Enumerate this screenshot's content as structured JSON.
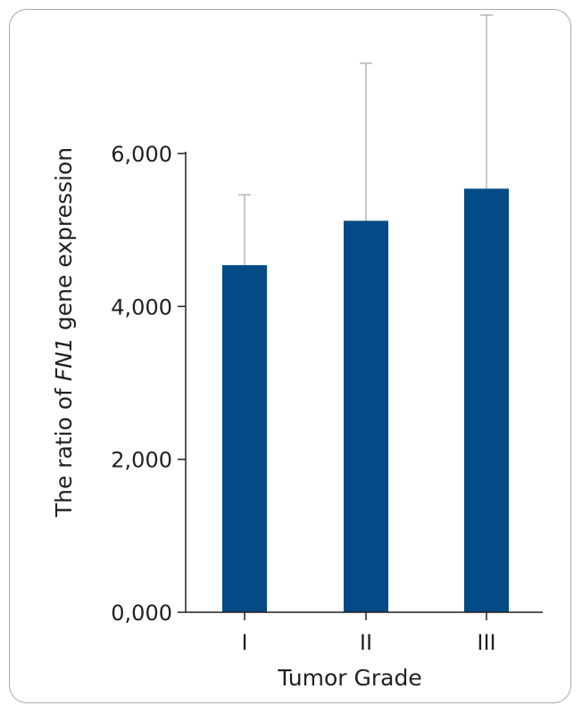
{
  "chart_data": {
    "type": "bar",
    "categories": [
      "I",
      "II",
      "III"
    ],
    "values": [
      4540,
      5120,
      5540
    ],
    "error_upper": [
      5460,
      7180,
      7810
    ],
    "ylim": [
      0,
      6000
    ],
    "yticks": [
      0,
      2000,
      4000,
      6000
    ],
    "ytick_labels": [
      "0,000",
      "2,000",
      "4,000",
      "6,000"
    ],
    "xlabel": "Tumor Grade",
    "ylabel": {
      "prefix": "The ratio of ",
      "gene": "FN1",
      "suffix": " gene expression"
    },
    "grid": false,
    "legend": "none",
    "bar_color": "#034b86",
    "error_color": "#b5b5b5",
    "axis_color": "#231f20"
  }
}
